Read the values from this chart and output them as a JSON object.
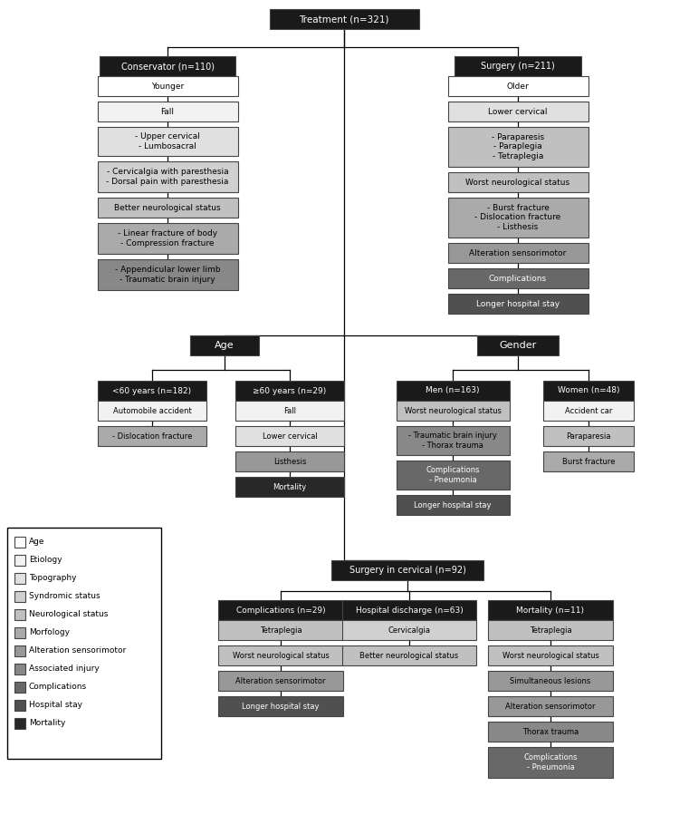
{
  "colors": {
    "white": "#FFFFFF",
    "etiology": "#F2F2F2",
    "topography": "#E0E0E0",
    "syndromic": "#D0D0D0",
    "neurological": "#C0C0C0",
    "morfology": "#AAAAAA",
    "alteration": "#989898",
    "associated": "#888888",
    "complications": "#686868",
    "hospital_stay": "#505050",
    "mortality": "#282828",
    "black_header": "#1A1A1A",
    "line": "#000000"
  },
  "legend_items": [
    {
      "label": "Age",
      "color": "#FFFFFF"
    },
    {
      "label": "Etiology",
      "color": "#F2F2F2"
    },
    {
      "label": "Topography",
      "color": "#E0E0E0"
    },
    {
      "label": "Syndromic status",
      "color": "#D0D0D0"
    },
    {
      "label": "Neurological status",
      "color": "#C0C0C0"
    },
    {
      "label": "Morfology",
      "color": "#AAAAAA"
    },
    {
      "label": "Alteration sensorimotor",
      "color": "#989898"
    },
    {
      "label": "Associated injury",
      "color": "#888888"
    },
    {
      "label": "Complications",
      "color": "#686868"
    },
    {
      "label": "Hospital stay",
      "color": "#505050"
    },
    {
      "label": "Mortality",
      "color": "#282828"
    }
  ]
}
